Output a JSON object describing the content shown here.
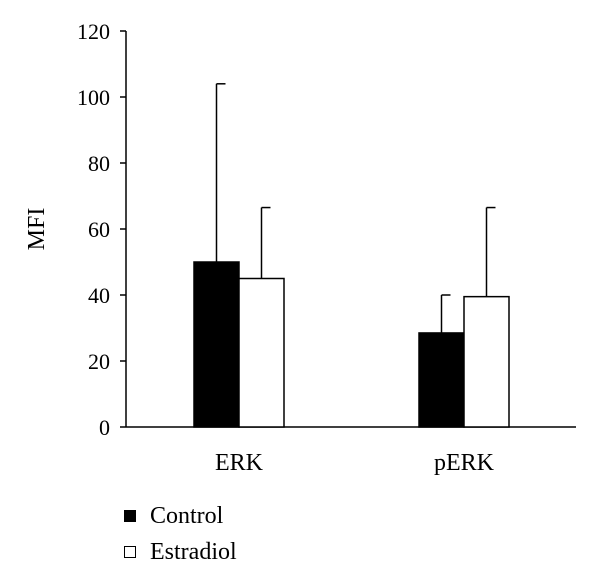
{
  "chart_data": {
    "type": "bar",
    "title": "",
    "xlabel": "",
    "ylabel": "MFI",
    "ylim": [
      0,
      120
    ],
    "yticks": [
      0,
      20,
      40,
      60,
      80,
      100,
      120
    ],
    "categories": [
      "ERK",
      "pERK"
    ],
    "series": [
      {
        "name": "Control",
        "color": "#000000",
        "values": [
          50,
          28.5
        ],
        "error_upper": [
          54,
          11.5
        ]
      },
      {
        "name": "Estradiol",
        "color": "#ffffff",
        "values": [
          45,
          39.5
        ],
        "error_upper": [
          21.5,
          27
        ]
      }
    ],
    "grid": false,
    "legend_position": "bottom-left"
  }
}
